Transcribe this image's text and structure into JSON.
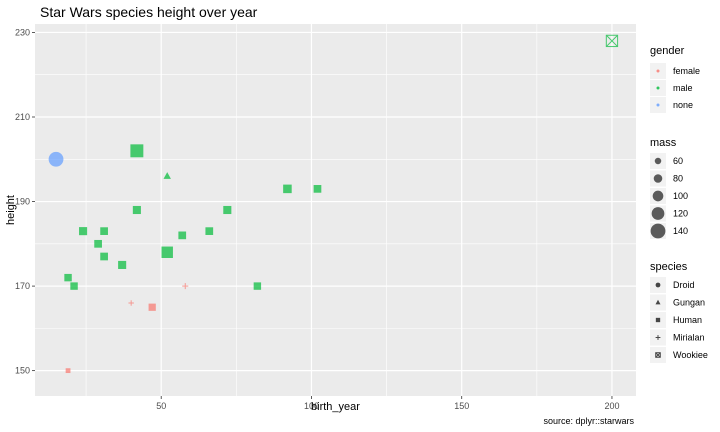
{
  "title": "Star Wars species height over year",
  "caption": "source:  dplyr::starwars",
  "colors": {
    "female": "#F8766D",
    "male": "#00BA38",
    "none": "#619CFF",
    "panel": "#EBEBEB",
    "grid": "#FFFFFF"
  },
  "chart_data": {
    "type": "scatter",
    "title": "Star Wars species height over year",
    "xlabel": "birth_year",
    "ylabel": "height",
    "xlim": [
      8,
      208
    ],
    "ylim": [
      144,
      232
    ],
    "x_ticks": [
      50,
      100,
      150,
      200
    ],
    "y_ticks": [
      150,
      170,
      190,
      210,
      230
    ],
    "grid": true,
    "legend_position": "right",
    "legends": {
      "gender": {
        "title": "gender",
        "items": [
          "female",
          "male",
          "none"
        ]
      },
      "mass": {
        "title": "mass",
        "items": [
          60,
          80,
          100,
          120,
          140
        ]
      },
      "species": {
        "title": "species",
        "items": [
          "Droid",
          "Gungan",
          "Human",
          "Mirialan",
          "Wookiee"
        ]
      }
    },
    "points": [
      {
        "x": 15,
        "y": 200,
        "gender": "none",
        "species": "Droid",
        "mass": 140
      },
      {
        "x": 19,
        "y": 150,
        "gender": "female",
        "species": "Human",
        "mass": 49
      },
      {
        "x": 19,
        "y": 172,
        "gender": "male",
        "species": "Human",
        "mass": 77
      },
      {
        "x": 21,
        "y": 170,
        "gender": "male",
        "species": "Human",
        "mass": 77
      },
      {
        "x": 24,
        "y": 183,
        "gender": "male",
        "species": "Human",
        "mass": 84
      },
      {
        "x": 29,
        "y": 180,
        "gender": "male",
        "species": "Human",
        "mass": 80
      },
      {
        "x": 31,
        "y": 177,
        "gender": "male",
        "species": "Human",
        "mass": 80
      },
      {
        "x": 31,
        "y": 183,
        "gender": "male",
        "species": "Human",
        "mass": 80
      },
      {
        "x": 37,
        "y": 175,
        "gender": "male",
        "species": "Human",
        "mass": 84
      },
      {
        "x": 40,
        "y": 166,
        "gender": "female",
        "species": "Mirialan",
        "mass": 50
      },
      {
        "x": 41.9,
        "y": 202,
        "gender": "male",
        "species": "Human",
        "mass": 136
      },
      {
        "x": 41.9,
        "y": 188,
        "gender": "male",
        "species": "Human",
        "mass": 84
      },
      {
        "x": 47,
        "y": 165,
        "gender": "female",
        "species": "Human",
        "mass": 75
      },
      {
        "x": 52,
        "y": 178,
        "gender": "male",
        "species": "Human",
        "mass": 120
      },
      {
        "x": 52,
        "y": 196,
        "gender": "male",
        "species": "Gungan",
        "mass": 66
      },
      {
        "x": 57,
        "y": 182,
        "gender": "male",
        "species": "Human",
        "mass": 80
      },
      {
        "x": 58,
        "y": 170,
        "gender": "female",
        "species": "Mirialan",
        "mass": 56.2
      },
      {
        "x": 66,
        "y": 183,
        "gender": "male",
        "species": "Human",
        "mass": 80
      },
      {
        "x": 72,
        "y": 188,
        "gender": "male",
        "species": "Human",
        "mass": 84
      },
      {
        "x": 82,
        "y": 170,
        "gender": "male",
        "species": "Human",
        "mass": 77
      },
      {
        "x": 92,
        "y": 193,
        "gender": "male",
        "species": "Human",
        "mass": 89
      },
      {
        "x": 102,
        "y": 193,
        "gender": "male",
        "species": "Human",
        "mass": 80
      },
      {
        "x": 200,
        "y": 228,
        "gender": "male",
        "species": "Wookiee",
        "mass": 112
      }
    ]
  }
}
